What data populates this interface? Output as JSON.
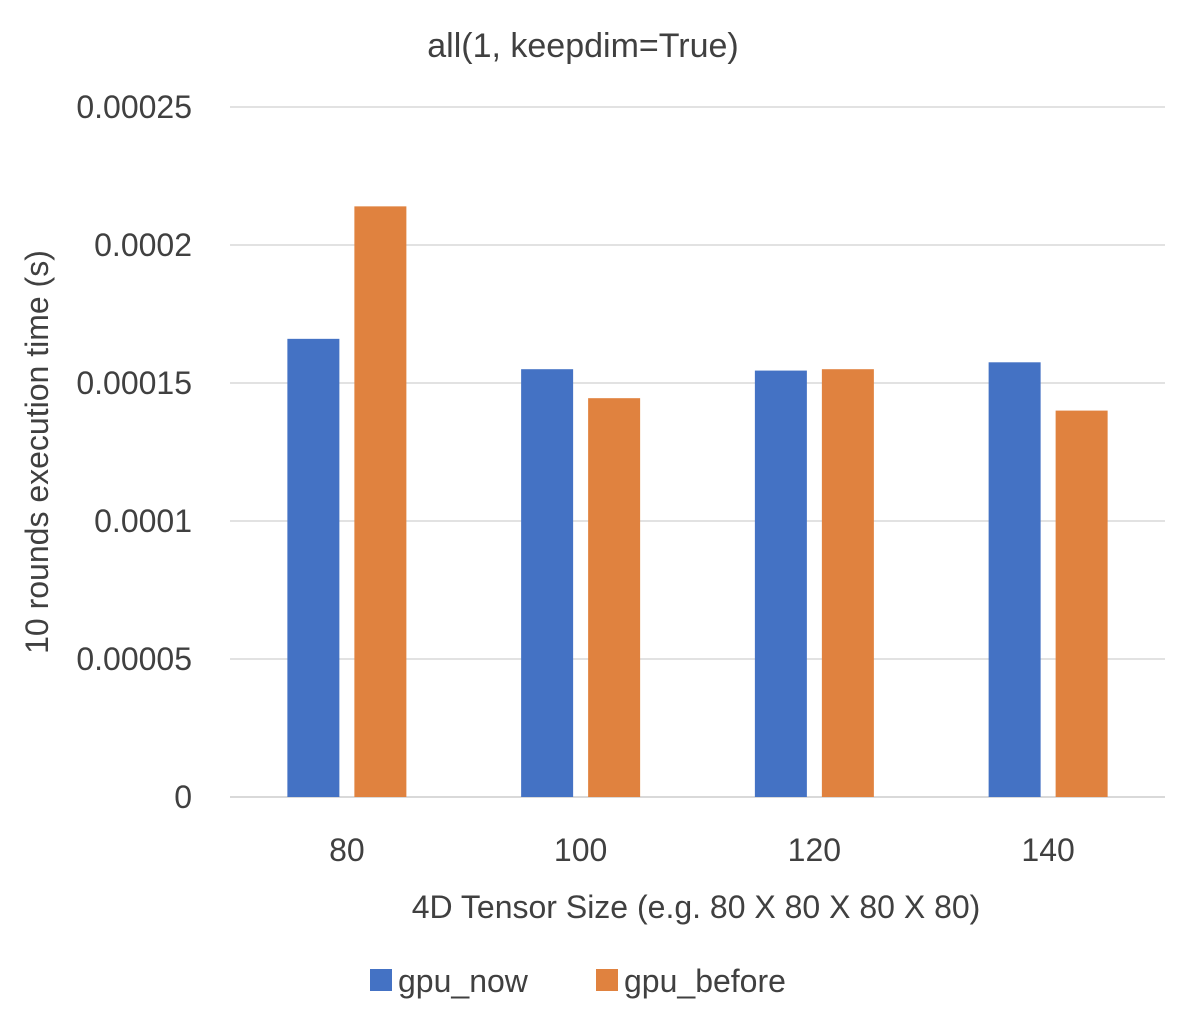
{
  "chart_data": {
    "type": "bar",
    "title": "all(1, keepdim=True)",
    "xlabel": "4D Tensor Size (e.g. 80 X 80 X 80 X 80)",
    "ylabel": "10 rounds execution time (s)",
    "categories": [
      "80",
      "100",
      "120",
      "140"
    ],
    "series": [
      {
        "name": "gpu_now",
        "color": "#4472c4",
        "values": [
          0.000166,
          0.000155,
          0.0001545,
          0.0001575
        ]
      },
      {
        "name": "gpu_before",
        "color": "#e0823f",
        "values": [
          0.000214,
          0.0001445,
          0.000155,
          0.00014
        ]
      }
    ],
    "ylim": [
      0,
      0.00025
    ],
    "yticks": [
      0,
      5e-05,
      0.0001,
      0.00015,
      0.0002,
      0.00025
    ],
    "ytick_labels": [
      "0",
      "0.00005",
      "0.0001",
      "0.00015",
      "0.0002",
      "0.00025"
    ],
    "grid": true,
    "legend_position": "bottom"
  }
}
